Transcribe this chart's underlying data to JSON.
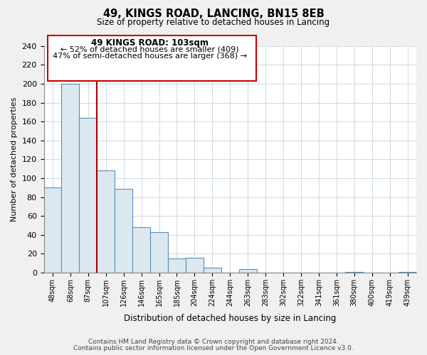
{
  "title": "49, KINGS ROAD, LANCING, BN15 8EB",
  "subtitle": "Size of property relative to detached houses in Lancing",
  "xlabel": "Distribution of detached houses by size in Lancing",
  "ylabel": "Number of detached properties",
  "bar_labels": [
    "48sqm",
    "68sqm",
    "87sqm",
    "107sqm",
    "126sqm",
    "146sqm",
    "165sqm",
    "185sqm",
    "204sqm",
    "224sqm",
    "244sqm",
    "263sqm",
    "283sqm",
    "302sqm",
    "322sqm",
    "341sqm",
    "361sqm",
    "380sqm",
    "400sqm",
    "419sqm",
    "439sqm"
  ],
  "bar_values": [
    90,
    200,
    164,
    108,
    89,
    48,
    43,
    15,
    16,
    5,
    0,
    4,
    0,
    0,
    0,
    0,
    0,
    1,
    0,
    0,
    1
  ],
  "bar_color": "#dce8f0",
  "bar_edge_color": "#5b8db8",
  "vline_color": "#aa0000",
  "ylim": [
    0,
    240
  ],
  "yticks": [
    0,
    20,
    40,
    60,
    80,
    100,
    120,
    140,
    160,
    180,
    200,
    220,
    240
  ],
  "annotation_title": "49 KINGS ROAD: 103sqm",
  "annotation_line1": "← 52% of detached houses are smaller (409)",
  "annotation_line2": "47% of semi-detached houses are larger (368) →",
  "box_facecolor": "#ffffff",
  "box_edgecolor": "#cc0000",
  "footer1": "Contains HM Land Registry data © Crown copyright and database right 2024.",
  "footer2": "Contains public sector information licensed under the Open Government Licence v3.0.",
  "background_color": "#f0f0f0",
  "plot_background": "#ffffff",
  "grid_color": "#c8d4e0"
}
